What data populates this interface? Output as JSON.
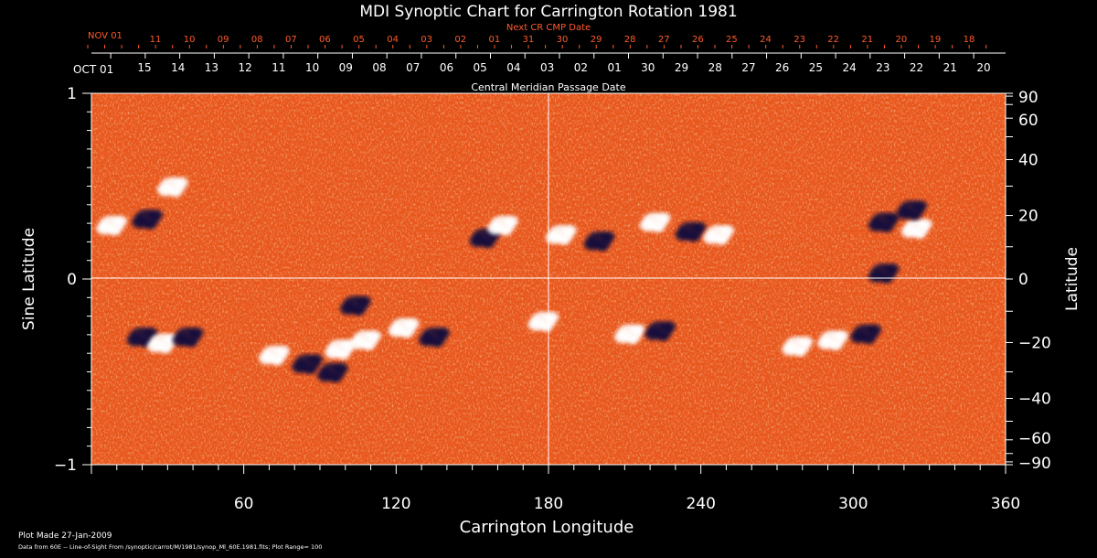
{
  "chart_data": {
    "type": "heatmap",
    "title": "MDI Synoptic Chart for Carrington Rotation 1981",
    "xlabel": "Carrington Longitude",
    "ylabel": "Sine Latitude",
    "ylabel_right": "Latitude",
    "top_axis_label": "Central Meridian Passage Date",
    "top_axis2_label": "Next CR CMP Date",
    "xlim": [
      0,
      360
    ],
    "ylim": [
      -1,
      1
    ],
    "x_ticks": [
      "60",
      "120",
      "180",
      "240",
      "300",
      "360"
    ],
    "y_ticks_left": [
      "1",
      "0",
      "−1"
    ],
    "y_ticks_right": [
      "90",
      "60",
      "40",
      "20",
      "0",
      "−20",
      "−40",
      "−60",
      "−90"
    ],
    "cmp_dates": {
      "start_label": "OCT 01",
      "labels": [
        "15",
        "14",
        "13",
        "12",
        "11",
        "10",
        "09",
        "08",
        "07",
        "06",
        "05",
        "04",
        "03",
        "02",
        "01",
        "30",
        "29",
        "28",
        "27",
        "26",
        "25",
        "24",
        "23",
        "22",
        "21",
        "20"
      ]
    },
    "next_cr_dates": {
      "start_label": "NOV 01",
      "labels": [
        "11",
        "10",
        "09",
        "08",
        "07",
        "06",
        "05",
        "04",
        "03",
        "02",
        "01",
        "31",
        "30",
        "29",
        "28",
        "27",
        "26",
        "25",
        "24",
        "23",
        "22",
        "21",
        "20",
        "19",
        "18"
      ]
    },
    "colors": {
      "background_field": "#e8561c",
      "positive_polarity": "#ffffff",
      "negative_polarity": "#1a0a3c",
      "axes": "#ffffff",
      "secondary_axis": "#ff5a2a"
    },
    "active_regions": [
      {
        "lon": 8,
        "lat": 17,
        "polarity": "positive"
      },
      {
        "lon": 22,
        "lat": 19,
        "polarity": "negative"
      },
      {
        "lon": 32,
        "lat": 30,
        "polarity": "positive"
      },
      {
        "lon": 20,
        "lat": -18,
        "polarity": "negative"
      },
      {
        "lon": 28,
        "lat": -20,
        "polarity": "positive"
      },
      {
        "lon": 38,
        "lat": -18,
        "polarity": "negative"
      },
      {
        "lon": 72,
        "lat": -24,
        "polarity": "positive"
      },
      {
        "lon": 85,
        "lat": -27,
        "polarity": "negative"
      },
      {
        "lon": 98,
        "lat": -22,
        "polarity": "positive"
      },
      {
        "lon": 108,
        "lat": -19,
        "polarity": "positive"
      },
      {
        "lon": 104,
        "lat": -8,
        "polarity": "negative"
      },
      {
        "lon": 95,
        "lat": -30,
        "polarity": "negative"
      },
      {
        "lon": 123,
        "lat": -15,
        "polarity": "positive"
      },
      {
        "lon": 135,
        "lat": -18,
        "polarity": "negative"
      },
      {
        "lon": 155,
        "lat": 13,
        "polarity": "negative"
      },
      {
        "lon": 162,
        "lat": 17,
        "polarity": "positive"
      },
      {
        "lon": 178,
        "lat": -13,
        "polarity": "positive"
      },
      {
        "lon": 185,
        "lat": 14,
        "polarity": "positive"
      },
      {
        "lon": 200,
        "lat": 12,
        "polarity": "negative"
      },
      {
        "lon": 212,
        "lat": -17,
        "polarity": "positive"
      },
      {
        "lon": 224,
        "lat": -16,
        "polarity": "negative"
      },
      {
        "lon": 222,
        "lat": 18,
        "polarity": "positive"
      },
      {
        "lon": 236,
        "lat": 15,
        "polarity": "negative"
      },
      {
        "lon": 247,
        "lat": 14,
        "polarity": "positive"
      },
      {
        "lon": 278,
        "lat": -21,
        "polarity": "positive"
      },
      {
        "lon": 292,
        "lat": -19,
        "polarity": "positive"
      },
      {
        "lon": 305,
        "lat": -17,
        "polarity": "negative"
      },
      {
        "lon": 312,
        "lat": 2,
        "polarity": "negative"
      },
      {
        "lon": 312,
        "lat": 18,
        "polarity": "negative"
      },
      {
        "lon": 325,
        "lat": 16,
        "polarity": "positive"
      },
      {
        "lon": 323,
        "lat": 22,
        "polarity": "negative"
      }
    ]
  },
  "footer": {
    "plot_made": "Plot Made 27-Jan-2009",
    "data_note": "Data from 60E -- Line-of-Sight From /synoptic/carrot/M/1981/synop_Ml_60E.1981.fits; Plot Range=  100"
  }
}
